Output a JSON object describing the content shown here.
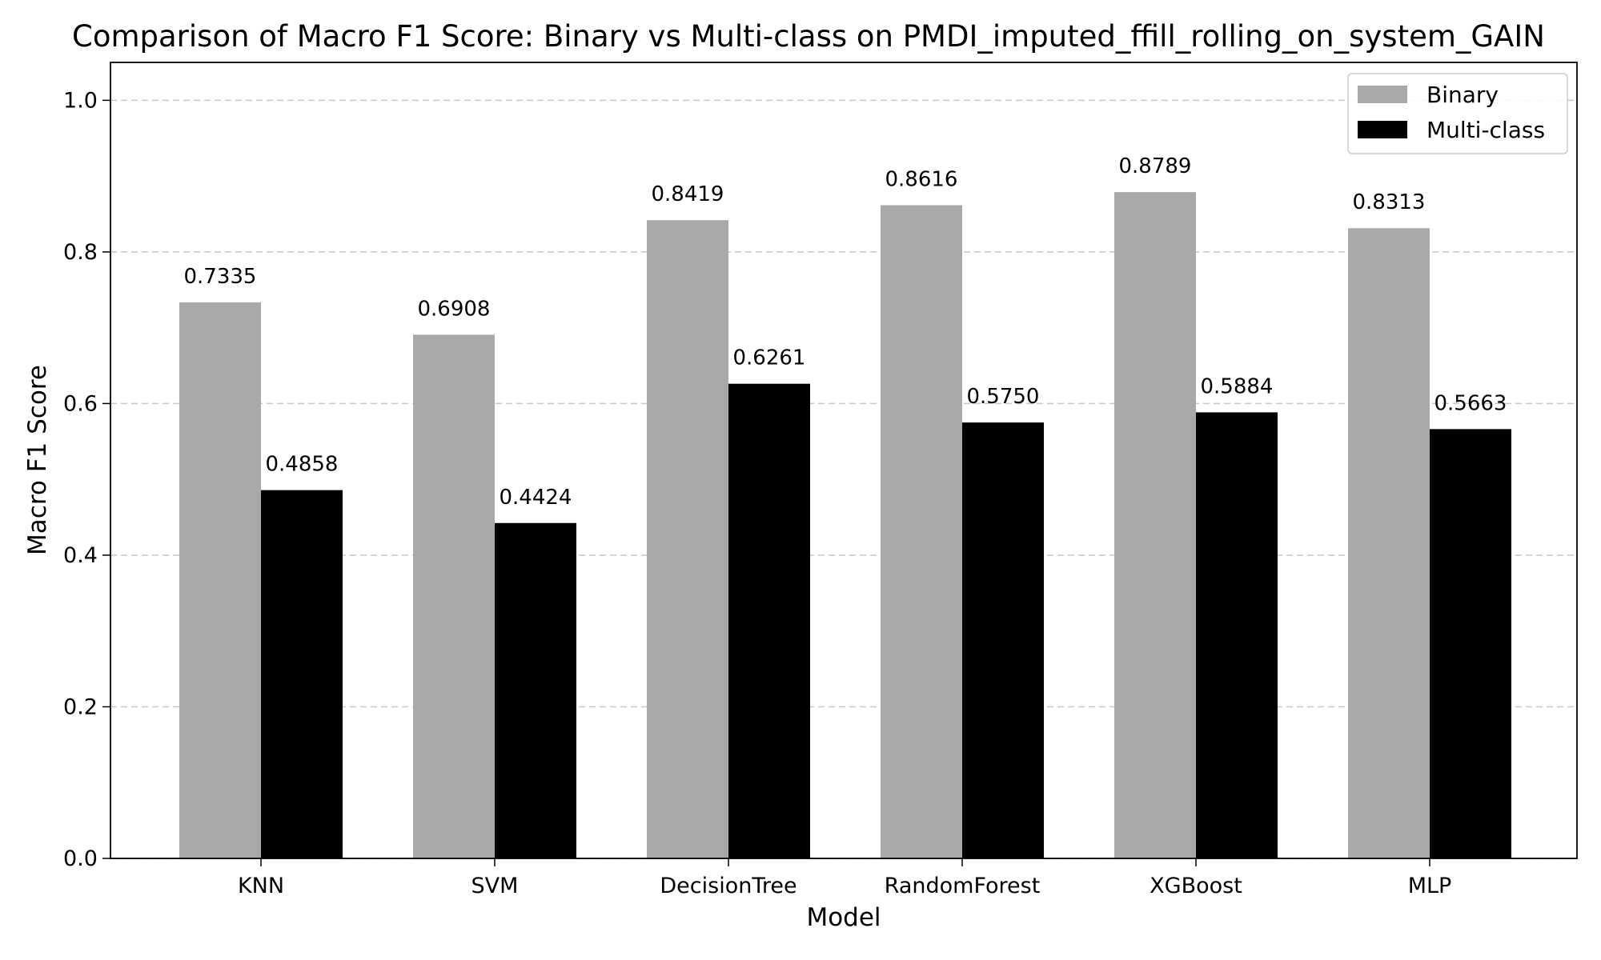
{
  "chart_data": {
    "type": "bar",
    "title": "Comparison of Macro F1 Score: Binary vs Multi-class on PMDI_imputed_ffill_rolling_on_system_GAIN",
    "xlabel": "Model",
    "ylabel": "Macro F1 Score",
    "categories": [
      "KNN",
      "SVM",
      "DecisionTree",
      "RandomForest",
      "XGBoost",
      "MLP"
    ],
    "series": [
      {
        "name": "Binary",
        "color": "#a9a9a9",
        "values": [
          0.7335,
          0.6908,
          0.8419,
          0.8616,
          0.8789,
          0.8313
        ]
      },
      {
        "name": "Multi-class",
        "color": "#000000",
        "values": [
          0.4858,
          0.4424,
          0.6261,
          0.575,
          0.5884,
          0.5663
        ]
      }
    ],
    "data_labels": [
      [
        "0.7335",
        "0.6908",
        "0.8419",
        "0.8616",
        "0.8789",
        "0.8313"
      ],
      [
        "0.4858",
        "0.4424",
        "0.6261",
        "0.5750",
        "0.5884",
        "0.5663"
      ]
    ],
    "ylim": [
      0,
      1.05
    ],
    "yticks": [
      0.0,
      0.2,
      0.4,
      0.6,
      0.8,
      1.0
    ],
    "ytick_labels": [
      "0.0",
      "0.2",
      "0.4",
      "0.6",
      "0.8",
      "1.0"
    ],
    "grid": "y-dashed",
    "legend_position": "top-right"
  }
}
